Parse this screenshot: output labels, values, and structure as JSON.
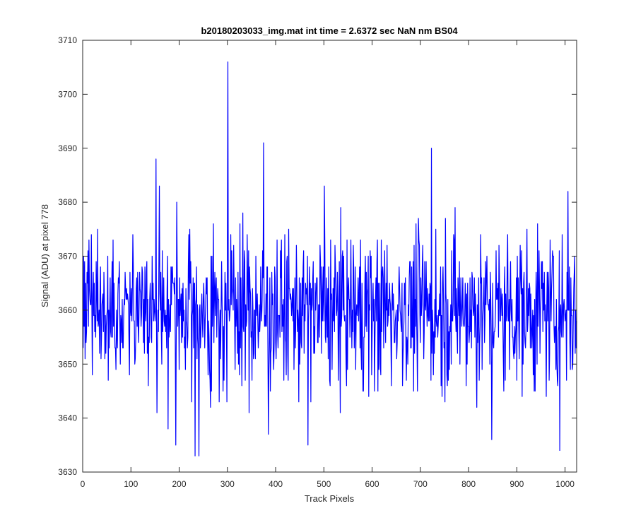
{
  "chart_data": {
    "type": "line",
    "title": "b20180203033_img.mat int time = 2.6372 sec  NaN nm BS04",
    "xlabel": "Track Pixels",
    "ylabel": "Signal (ADU) at pixel 778",
    "xlim": [
      0,
      1024
    ],
    "ylim": [
      3630,
      3710
    ],
    "xticks": [
      0,
      100,
      200,
      300,
      400,
      500,
      600,
      700,
      800,
      900,
      1000
    ],
    "yticks": [
      3630,
      3640,
      3650,
      3660,
      3670,
      3680,
      3690,
      3700,
      3710
    ],
    "grid": false,
    "line_color": "#0000ff",
    "samples": 1024,
    "baseline": 3660,
    "noise_sd": 7,
    "peaks": [
      {
        "x": 151,
        "y": 3688
      },
      {
        "x": 158,
        "y": 3683
      },
      {
        "x": 194,
        "y": 3680
      },
      {
        "x": 300,
        "y": 3706
      },
      {
        "x": 374,
        "y": 3691
      },
      {
        "x": 500,
        "y": 3683
      },
      {
        "x": 722,
        "y": 3690
      },
      {
        "x": 771,
        "y": 3679
      },
      {
        "x": 1005,
        "y": 3682
      }
    ],
    "troughs": [
      {
        "x": 153,
        "y": 3641
      },
      {
        "x": 176,
        "y": 3638
      },
      {
        "x": 192,
        "y": 3635
      },
      {
        "x": 232,
        "y": 3633
      },
      {
        "x": 240,
        "y": 3633
      },
      {
        "x": 384,
        "y": 3637
      },
      {
        "x": 466,
        "y": 3635
      },
      {
        "x": 847,
        "y": 3636
      },
      {
        "x": 988,
        "y": 3634
      }
    ]
  }
}
